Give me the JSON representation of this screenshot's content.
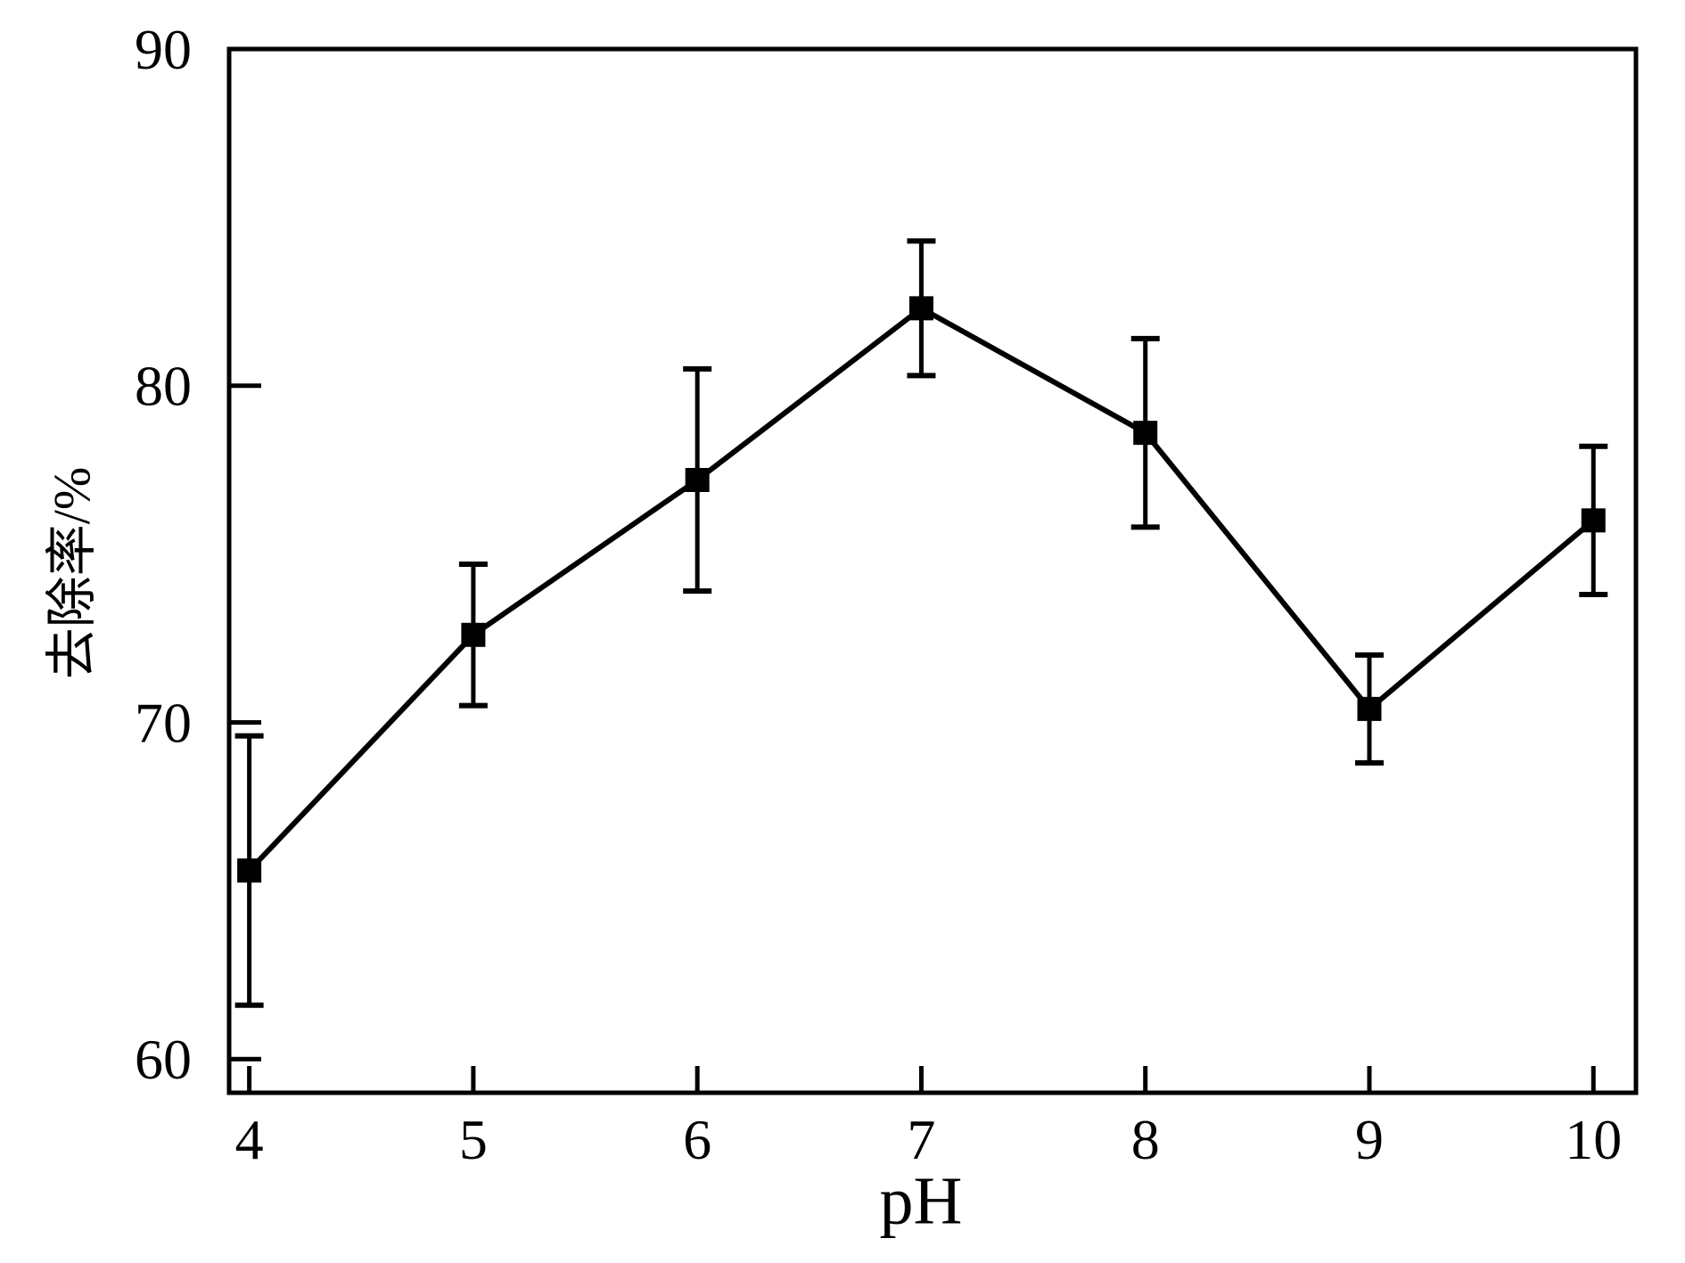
{
  "figure": {
    "background_color": "#ffffff",
    "foreground_color": "#000000"
  },
  "chart_data": {
    "type": "line",
    "title": "",
    "xlabel": "pH",
    "ylabel": "去除率/%",
    "x": [
      4,
      5,
      6,
      7,
      8,
      9,
      10
    ],
    "y": [
      65.6,
      72.6,
      77.2,
      82.3,
      78.6,
      70.4,
      76.0
    ],
    "errors": [
      4.0,
      2.1,
      3.3,
      2.0,
      2.8,
      1.6,
      2.2
    ],
    "series_name": "去除率",
    "x_ticks": [
      4,
      5,
      6,
      7,
      8,
      9,
      10
    ],
    "y_ticks": [
      60,
      70,
      80,
      90
    ],
    "xlim": [
      3.91,
      10.19
    ],
    "ylim": [
      59,
      90
    ],
    "marker": "filled-square",
    "line_style": "solid",
    "error_bars": true,
    "grid": false,
    "legend_position": "none",
    "color": "#000000"
  }
}
